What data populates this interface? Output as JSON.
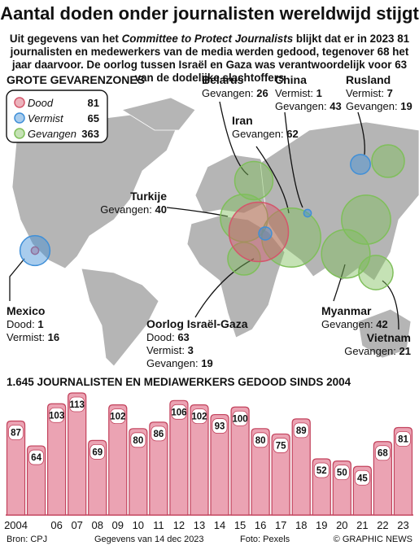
{
  "header": {
    "title": "Aantal doden onder journalisten wereldwijd stijgt",
    "subtitle_lead": "Uit gegevens van het",
    "subtitle_source": "Committee to Protect Journalists",
    "subtitle_rest": "blijkt dat er in 2023 81 journalisten en medewerkers van de media werden gedood, tegenover 68 het jaar daarvoor. De oorlog tussen Israël en Gaza was verantwoordelijk voor 63 van de dodelijke slachtoffers"
  },
  "map": {
    "heading": "GROTE GEVARENZONES",
    "legend": [
      {
        "name": "Dood",
        "value": 81,
        "color": "#d4566b"
      },
      {
        "name": "Vermist",
        "value": 65,
        "color": "#3f8fd8"
      },
      {
        "name": "Gevangen",
        "value": 363,
        "color": "#7fbf5a"
      }
    ],
    "regions": [
      {
        "name": "Belarus",
        "lines": [
          {
            "label": "Gevangen:",
            "value": 26
          }
        ]
      },
      {
        "name": "China",
        "lines": [
          {
            "label": "Vermist:",
            "value": 1
          },
          {
            "label": "Gevangen:",
            "value": 43
          }
        ]
      },
      {
        "name": "Rusland",
        "lines": [
          {
            "label": "Vermist:",
            "value": 7
          },
          {
            "label": "Gevangen:",
            "value": 19
          }
        ]
      },
      {
        "name": "Iran",
        "lines": [
          {
            "label": "Gevangen:",
            "value": 62
          }
        ]
      },
      {
        "name": "Turkije",
        "lines": [
          {
            "label": "Gevangen:",
            "value": 40
          }
        ]
      },
      {
        "name": "Mexico",
        "lines": [
          {
            "label": "Dood:",
            "value": 1
          },
          {
            "label": "Vermist:",
            "value": 16
          }
        ]
      },
      {
        "name": "Oorlog Israël-Gaza",
        "lines": [
          {
            "label": "Dood:",
            "value": 63
          },
          {
            "label": "Vermist:",
            "value": 3
          },
          {
            "label": "Gevangen:",
            "value": 19
          }
        ]
      },
      {
        "name": "Myanmar",
        "lines": [
          {
            "label": "Gevangen:",
            "value": 42
          }
        ]
      },
      {
        "name": "Vietnam",
        "lines": [
          {
            "label": "Gevangen:",
            "value": 21
          }
        ]
      }
    ]
  },
  "chart_data": {
    "type": "bar",
    "title": "1.645 JOURNALISTEN EN MEDIAWERKERS GEDOOD SINDS 2004",
    "categories": [
      "2004",
      null,
      "06",
      "07",
      "08",
      "09",
      "10",
      "11",
      "12",
      "13",
      "14",
      "15",
      "16",
      "17",
      "18",
      "19",
      "20",
      "21",
      "22",
      "23"
    ],
    "values": [
      87,
      64,
      103,
      113,
      69,
      102,
      80,
      86,
      106,
      102,
      93,
      100,
      80,
      75,
      89,
      52,
      50,
      45,
      68,
      81
    ],
    "color": "#eba3b3",
    "edge_color": "#c2425c"
  },
  "footer": {
    "source": "Bron: CPJ",
    "date": "Gegevens van 14 dec 2023",
    "photo": "Foto: Pexels",
    "credit": "© GRAPHIC NEWS"
  }
}
